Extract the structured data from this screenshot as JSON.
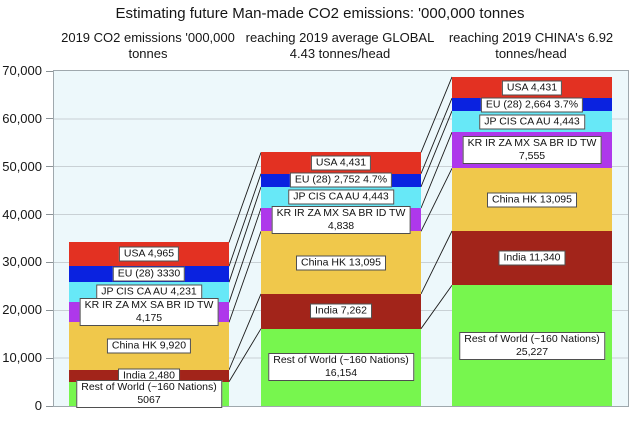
{
  "chart_data": {
    "type": "bar",
    "stacked": true,
    "title": "Estimating future Man-made CO2 emissions: '000,000 tonnes",
    "column_headers": [
      [
        "2019 CO2 emissions '000,000",
        "tonnes"
      ],
      [
        "reaching 2019 average GLOBAL",
        "4.43 tonnes/head"
      ],
      [
        "reaching 2019 CHINA's 6.92",
        "tonnes/head"
      ]
    ],
    "ylim": [
      0,
      70000
    ],
    "y_tick_step": 10000,
    "y_tick_labels": [
      "0",
      "10,000",
      "20,000",
      "30,000",
      "40,000",
      "50,000",
      "60,000",
      "70,000"
    ],
    "grid": true,
    "legend": "none",
    "connectors_between_bars": true,
    "series_bottom_to_top": [
      "Rest of World (~160 Nations)",
      "India",
      "China HK",
      "KR IR ZA MX SA BR ID TW",
      "JP CIS CA AU",
      "EU (28)",
      "USA"
    ],
    "colors": {
      "Rest of World (~160 Nations)": "#77F64E",
      "India": "#A2241A",
      "China HK": "#F0C84B",
      "KR IR ZA MX SA BR ID TW": "#AE38EB",
      "JP CIS CA AU": "#67E8F7",
      "EU (28)": "#0A22E0",
      "USA": "#E33122"
    },
    "bars": [
      {
        "id": "2019-actual",
        "total": 34168,
        "segments": [
          {
            "series": "Rest of World (~160 Nations)",
            "value": 5067,
            "label_lines": [
              "Rest of World (~160 Nations)",
              "5067"
            ]
          },
          {
            "series": "India",
            "value": 2480,
            "label_lines": [
              "India 2,480"
            ]
          },
          {
            "series": "China HK",
            "value": 9920,
            "label_lines": [
              "China HK 9,920"
            ]
          },
          {
            "series": "KR IR ZA MX SA BR ID TW",
            "value": 4175,
            "label_lines": [
              "KR IR ZA MX SA BR ID TW",
              "4,175"
            ]
          },
          {
            "series": "JP CIS CA AU",
            "value": 4231,
            "label_lines": [
              "JP CIS CA AU 4,231"
            ]
          },
          {
            "series": "EU (28)",
            "value": 3330,
            "label_lines": [
              "EU (28) 3330"
            ]
          },
          {
            "series": "USA",
            "value": 4965,
            "label_lines": [
              "USA 4,965"
            ]
          }
        ]
      },
      {
        "id": "global-average-4-43",
        "total": 52975,
        "segments": [
          {
            "series": "Rest of World (~160 Nations)",
            "value": 16154,
            "label_lines": [
              "Rest of World (~160 Nations)",
              "16,154"
            ]
          },
          {
            "series": "India",
            "value": 7262,
            "label_lines": [
              "India 7,262"
            ]
          },
          {
            "series": "China HK",
            "value": 13095,
            "label_lines": [
              "China HK 13,095"
            ]
          },
          {
            "series": "KR IR ZA MX SA BR ID TW",
            "value": 4838,
            "label_lines": [
              "KR IR ZA MX SA BR ID TW",
              "4,838"
            ]
          },
          {
            "series": "JP CIS CA AU",
            "value": 4443,
            "label_lines": [
              "JP CIS CA AU 4,443"
            ]
          },
          {
            "series": "EU (28)",
            "value": 2752,
            "label_lines": [
              "EU (28) 2,752 4.7%"
            ]
          },
          {
            "series": "USA",
            "value": 4431,
            "label_lines": [
              "USA 4,431"
            ]
          }
        ]
      },
      {
        "id": "china-level-6-92",
        "total": 68755,
        "segments": [
          {
            "series": "Rest of World (~160 Nations)",
            "value": 25227,
            "label_lines": [
              "Rest of World (~160 Nations)",
              "25,227"
            ]
          },
          {
            "series": "India",
            "value": 11340,
            "label_lines": [
              "India 11,340"
            ]
          },
          {
            "series": "China HK",
            "value": 13095,
            "label_lines": [
              "China HK 13,095"
            ]
          },
          {
            "series": "KR IR ZA MX SA BR ID TW",
            "value": 7555,
            "label_lines": [
              "KR IR ZA MX SA BR ID TW",
              "7,555"
            ]
          },
          {
            "series": "JP CIS CA AU",
            "value": 4443,
            "label_lines": [
              "JP CIS CA AU 4,443"
            ]
          },
          {
            "series": "EU (28)",
            "value": 2664,
            "label_lines": [
              "EU (28) 2,664 3.7%"
            ]
          },
          {
            "series": "USA",
            "value": 4431,
            "label_lines": [
              "USA 4,431"
            ]
          }
        ]
      }
    ]
  }
}
